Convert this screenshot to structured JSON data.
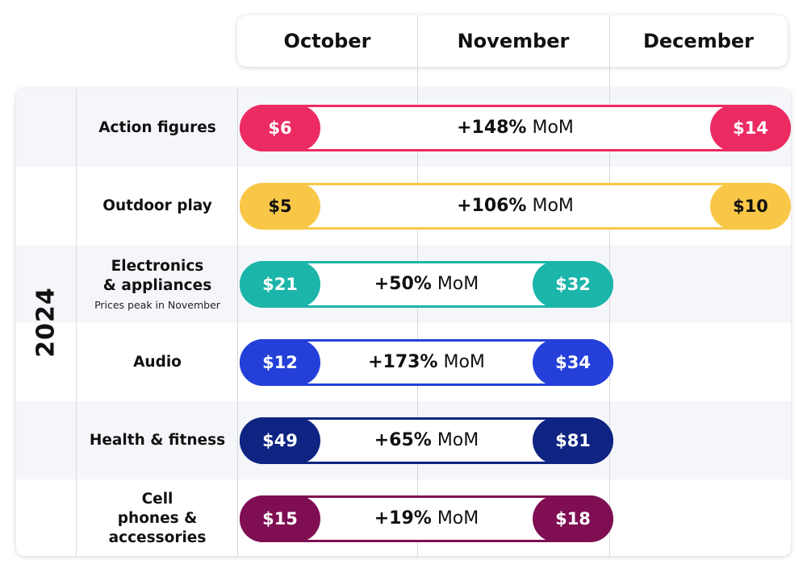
{
  "chart_data": {
    "type": "table",
    "title": "",
    "year": "2024",
    "months": [
      "October",
      "November",
      "December"
    ],
    "rows": [
      {
        "category": "Action figures",
        "note": "",
        "start_value": "$6",
        "end_value": "$14",
        "change": "+148%",
        "change_unit": "MoM",
        "start_month": "October",
        "end_month": "December",
        "color": "#EC2B63",
        "value_text_color": "#ffffff"
      },
      {
        "category": "Outdoor play",
        "note": "",
        "start_value": "$5",
        "end_value": "$10",
        "change": "+106%",
        "change_unit": "MoM",
        "start_month": "October",
        "end_month": "December",
        "color": "#F9C748",
        "value_text_color": "#111111"
      },
      {
        "category": "Electronics & appliances",
        "note": "Prices peak in November",
        "start_value": "$21",
        "end_value": "$32",
        "change": "+50%",
        "change_unit": "MoM",
        "start_month": "October",
        "end_month": "November",
        "color": "#1BB5A9",
        "value_text_color": "#ffffff"
      },
      {
        "category": "Audio",
        "note": "",
        "start_value": "$12",
        "end_value": "$34",
        "change": "+173%",
        "change_unit": "MoM",
        "start_month": "October",
        "end_month": "November",
        "color": "#2440D8",
        "value_text_color": "#ffffff"
      },
      {
        "category": "Health & fitness",
        "note": "",
        "start_value": "$49",
        "end_value": "$81",
        "change": "+65%",
        "change_unit": "MoM",
        "start_month": "October",
        "end_month": "November",
        "color": "#0F2482",
        "value_text_color": "#ffffff"
      },
      {
        "category": "Cell phones & accessories",
        "note": "",
        "start_value": "$15",
        "end_value": "$18",
        "change": "+19%",
        "change_unit": "MoM",
        "start_month": "October",
        "end_month": "November",
        "color": "#7F0E52",
        "value_text_color": "#ffffff"
      }
    ]
  }
}
